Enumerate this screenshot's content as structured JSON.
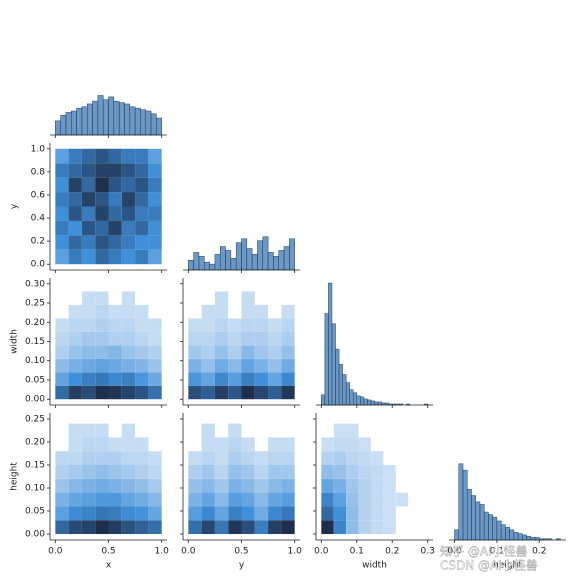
{
  "chart_data": {
    "type": "pairplot",
    "color": "#3b75af",
    "variables": [
      {
        "name": "x",
        "lim": [
          -0.05,
          1.05
        ],
        "xticks": [
          {
            "value": 0.0,
            "label": "0.0"
          },
          0.5,
          {
            "value": 1.0,
            "label": "1.0"
          }
        ]
      },
      {
        "name": "y",
        "lim": [
          -0.05,
          1.05
        ],
        "xticks": [
          {
            "value": 0.0,
            "label": "0.0"
          },
          0.5,
          {
            "value": 1.0,
            "label": "1.0"
          }
        ],
        "yticks": [
          {
            "value": 0.0,
            "label": "0.0"
          },
          0.2,
          0.4,
          0.6,
          0.8,
          {
            "value": 1.0,
            "label": "1.0"
          }
        ]
      },
      {
        "name": "width",
        "lim": [
          -0.015,
          0.315
        ],
        "xticks": [
          {
            "value": 0.0,
            "label": "0.0"
          },
          0.1,
          0.2,
          0.3
        ],
        "yticks": [
          {
            "value": 0.0,
            "label": "0.00"
          },
          0.05,
          {
            "value": 0.1,
            "label": "0.10"
          },
          0.15,
          {
            "value": 0.2,
            "label": "0.20"
          },
          0.25,
          {
            "value": 0.3,
            "label": "0.30"
          }
        ]
      },
      {
        "name": "height",
        "lim": [
          -0.013,
          0.263
        ],
        "xticks": [
          {
            "value": 0.0,
            "label": "0.0"
          },
          0.1,
          0.2
        ],
        "yticks": [
          {
            "value": 0.0,
            "label": "0.00"
          },
          0.05,
          {
            "value": 0.1,
            "label": "0.10"
          },
          0.15,
          {
            "value": 0.2,
            "label": "0.20"
          },
          0.25
        ]
      }
    ],
    "diagonal": [
      {
        "ylim": [
          0,
          90
        ],
        "bins": [
          0,
          0.05,
          0.1,
          0.15,
          0.2,
          0.25,
          0.3,
          0.35,
          0.4,
          0.45,
          0.5,
          0.55,
          0.6,
          0.65,
          0.7,
          0.75,
          0.8,
          0.85,
          0.9,
          0.95,
          1.0
        ],
        "counts": [
          10,
          14,
          16,
          17,
          19,
          20,
          22,
          24,
          28,
          25,
          27,
          24,
          23,
          22,
          20,
          19,
          18,
          17,
          15,
          12
        ]
      },
      {
        "ylim": [
          0,
          65
        ],
        "bins": [
          0,
          0.05,
          0.1,
          0.15,
          0.2,
          0.25,
          0.3,
          0.35,
          0.4,
          0.45,
          0.5,
          0.55,
          0.6,
          0.65,
          0.7,
          0.75,
          0.8,
          0.85,
          0.9,
          0.95,
          1.0
        ],
        "counts": [
          5,
          9,
          7,
          4,
          3,
          8,
          12,
          10,
          6,
          14,
          16,
          11,
          8,
          15,
          17,
          9,
          7,
          10,
          12,
          16
        ]
      },
      {
        "ylim": [
          0,
          125
        ],
        "bins": [
          0,
          0.01,
          0.02,
          0.03,
          0.04,
          0.05,
          0.06,
          0.07,
          0.08,
          0.09,
          0.1,
          0.11,
          0.12,
          0.13,
          0.14,
          0.15,
          0.16,
          0.17,
          0.18,
          0.19,
          0.2,
          0.21,
          0.22,
          0.23,
          0.24,
          0.25,
          0.26,
          0.27,
          0.28,
          0.29,
          0.3
        ],
        "counts": [
          10,
          90,
          120,
          80,
          55,
          40,
          30,
          22,
          15,
          12,
          9,
          8,
          6,
          5,
          4,
          3,
          3,
          2,
          2,
          1,
          1,
          1,
          1,
          0,
          1,
          0,
          0,
          0,
          0,
          1
        ]
      },
      {
        "ylim": [
          0,
          100
        ],
        "bins": [
          0,
          0.01,
          0.02,
          0.03,
          0.04,
          0.05,
          0.06,
          0.07,
          0.08,
          0.09,
          0.1,
          0.11,
          0.12,
          0.13,
          0.14,
          0.15,
          0.16,
          0.17,
          0.18,
          0.19,
          0.2,
          0.21,
          0.22,
          0.23,
          0.24,
          0.25
        ],
        "counts": [
          8,
          60,
          55,
          40,
          35,
          30,
          28,
          22,
          20,
          18,
          15,
          12,
          10,
          8,
          6,
          5,
          4,
          3,
          2,
          2,
          1,
          1,
          1,
          0,
          1
        ]
      }
    ],
    "panels": [
      {
        "xbins": [
          0,
          0.125,
          0.25,
          0.375,
          0.5,
          0.625,
          0.75,
          0.875,
          1.0
        ],
        "ybins": [
          0,
          0.125,
          0.25,
          0.375,
          0.5,
          0.625,
          0.75,
          0.875,
          1.0
        ],
        "counts": [
          [
            4,
            6,
            5,
            7,
            6,
            5,
            6,
            4
          ],
          [
            5,
            7,
            6,
            8,
            7,
            6,
            5,
            5
          ],
          [
            6,
            5,
            8,
            7,
            9,
            6,
            7,
            5
          ],
          [
            5,
            8,
            6,
            9,
            7,
            8,
            6,
            6
          ],
          [
            6,
            7,
            9,
            8,
            6,
            9,
            7,
            5
          ],
          [
            5,
            9,
            7,
            10,
            8,
            7,
            8,
            6
          ],
          [
            6,
            7,
            8,
            9,
            9,
            8,
            7,
            5
          ],
          [
            4,
            6,
            7,
            8,
            7,
            6,
            6,
            4
          ]
        ]
      },
      {
        "xbins": [
          0,
          0.125,
          0.25,
          0.375,
          0.5,
          0.625,
          0.75,
          0.875,
          1.0
        ],
        "ybins": [
          0,
          0.035,
          0.07,
          0.105,
          0.14,
          0.175,
          0.21,
          0.245,
          0.28
        ],
        "counts": [
          [
            18,
            24,
            22,
            26,
            25,
            23,
            21,
            17
          ],
          [
            10,
            13,
            15,
            16,
            14,
            15,
            12,
            9
          ],
          [
            6,
            8,
            9,
            10,
            9,
            8,
            7,
            5
          ],
          [
            3,
            5,
            6,
            6,
            7,
            5,
            4,
            3
          ],
          [
            2,
            3,
            4,
            4,
            3,
            3,
            2,
            1
          ],
          [
            1,
            2,
            2,
            3,
            2,
            2,
            1,
            1
          ],
          [
            0,
            1,
            1,
            2,
            1,
            1,
            1,
            0
          ],
          [
            0,
            0,
            1,
            1,
            0,
            1,
            0,
            0
          ]
        ]
      },
      {
        "xbins": [
          0,
          0.125,
          0.25,
          0.375,
          0.5,
          0.625,
          0.75,
          0.875,
          1.0
        ],
        "ybins": [
          0,
          0.035,
          0.07,
          0.105,
          0.14,
          0.175,
          0.21,
          0.245,
          0.28
        ],
        "counts": [
          [
            20,
            18,
            22,
            19,
            24,
            21,
            18,
            23
          ],
          [
            11,
            9,
            13,
            10,
            14,
            12,
            9,
            13
          ],
          [
            7,
            5,
            8,
            6,
            9,
            7,
            5,
            8
          ],
          [
            4,
            3,
            5,
            3,
            6,
            4,
            3,
            5
          ],
          [
            2,
            2,
            3,
            2,
            3,
            3,
            2,
            3
          ],
          [
            1,
            1,
            2,
            1,
            2,
            2,
            1,
            2
          ],
          [
            0,
            1,
            1,
            0,
            1,
            1,
            0,
            1
          ],
          [
            0,
            0,
            1,
            0,
            1,
            0,
            0,
            0
          ]
        ]
      },
      {
        "xbins": [
          0,
          0.125,
          0.25,
          0.375,
          0.5,
          0.625,
          0.75,
          0.875,
          1.0
        ],
        "ybins": [
          0,
          0.03,
          0.06,
          0.09,
          0.12,
          0.15,
          0.18,
          0.21,
          0.24
        ],
        "counts": [
          [
            19,
            23,
            24,
            27,
            25,
            22,
            20,
            18
          ],
          [
            11,
            14,
            15,
            17,
            16,
            14,
            13,
            10
          ],
          [
            8,
            10,
            11,
            12,
            12,
            10,
            9,
            7
          ],
          [
            5,
            7,
            8,
            9,
            8,
            7,
            6,
            4
          ],
          [
            3,
            4,
            5,
            6,
            5,
            4,
            3,
            2
          ],
          [
            2,
            2,
            3,
            3,
            3,
            2,
            2,
            1
          ],
          [
            0,
            1,
            2,
            2,
            1,
            1,
            1,
            0
          ],
          [
            0,
            1,
            1,
            1,
            0,
            1,
            0,
            0
          ]
        ]
      },
      {
        "xbins": [
          0,
          0.125,
          0.25,
          0.375,
          0.5,
          0.625,
          0.75,
          0.875,
          1.0
        ],
        "ybins": [
          0,
          0.03,
          0.06,
          0.09,
          0.12,
          0.15,
          0.18,
          0.21,
          0.24
        ],
        "counts": [
          [
            16,
            21,
            15,
            23,
            20,
            14,
            22,
            24
          ],
          [
            10,
            13,
            9,
            14,
            12,
            8,
            13,
            15
          ],
          [
            7,
            9,
            6,
            10,
            9,
            6,
            9,
            10
          ],
          [
            5,
            6,
            4,
            7,
            6,
            4,
            6,
            7
          ],
          [
            3,
            4,
            2,
            5,
            4,
            2,
            4,
            4
          ],
          [
            1,
            2,
            1,
            3,
            2,
            1,
            2,
            2
          ],
          [
            0,
            1,
            1,
            2,
            1,
            0,
            1,
            1
          ],
          [
            0,
            1,
            0,
            1,
            0,
            0,
            0,
            0
          ]
        ]
      },
      {
        "xbins": [
          0,
          0.035,
          0.07,
          0.105,
          0.14,
          0.175,
          0.21,
          0.245,
          0.28
        ],
        "ybins": [
          0,
          0.03,
          0.06,
          0.09,
          0.12,
          0.15,
          0.18,
          0.21,
          0.24
        ],
        "counts": [
          [
            40,
            22,
            9,
            4,
            2,
            1,
            0,
            0
          ],
          [
            28,
            20,
            9,
            4,
            2,
            1,
            0,
            0
          ],
          [
            22,
            16,
            8,
            4,
            2,
            1,
            1,
            0
          ],
          [
            15,
            12,
            7,
            4,
            2,
            1,
            0,
            0
          ],
          [
            9,
            8,
            5,
            3,
            2,
            1,
            0,
            0
          ],
          [
            4,
            5,
            3,
            2,
            1,
            0,
            0,
            0
          ],
          [
            1,
            2,
            2,
            1,
            0,
            0,
            0,
            0
          ],
          [
            0,
            1,
            1,
            0,
            0,
            0,
            0,
            0
          ]
        ]
      }
    ],
    "annotations": [
      "知乎 @AI小怪兽",
      "CSDN @AI小怪兽"
    ]
  }
}
